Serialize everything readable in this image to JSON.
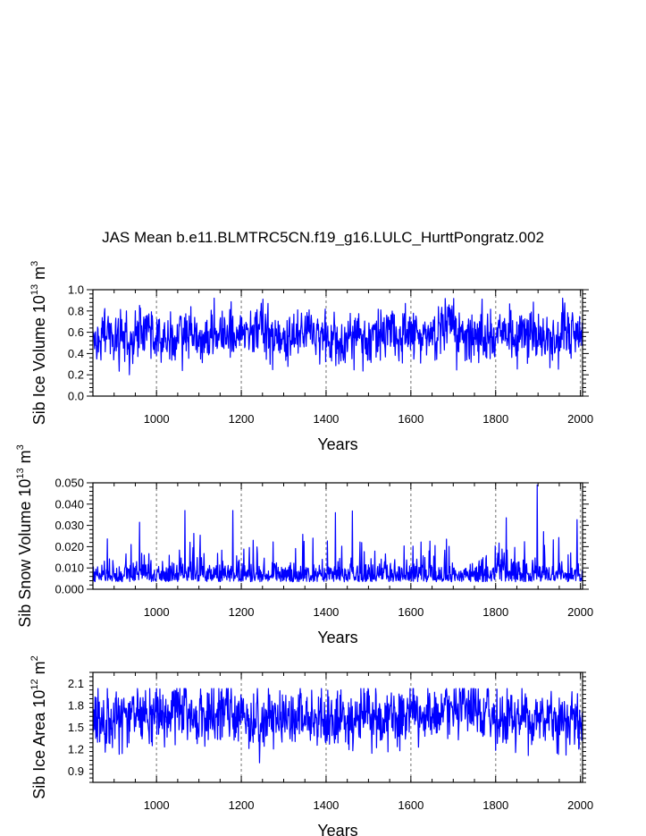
{
  "page": {
    "title": "JAS Mean b.e11.BLMTRC5CN.f19_g16.LULC_HurttPongratz.002"
  },
  "chart_data": [
    {
      "type": "line",
      "id": "ice-volume",
      "xlabel": "Years",
      "ylabel": "Sib Ice Volume 10",
      "ylabel_exp": "13",
      "ylabel_unit": "m",
      "ylabel_unit_exp": "3",
      "xlim": [
        850,
        2005
      ],
      "ylim": [
        0.0,
        1.0
      ],
      "xticks": [
        1000,
        1200,
        1400,
        1600,
        1800,
        2000
      ],
      "yticks": [
        0.0,
        0.2,
        0.4,
        0.6,
        0.8,
        1.0
      ],
      "ytick_labels": [
        "0.0",
        "0.2",
        "0.4",
        "0.6",
        "0.8",
        "1.0"
      ],
      "vlines": [
        1000,
        1200,
        1400,
        1600,
        1800,
        2000
      ],
      "line_color": "#0000ff",
      "series": [
        {
          "name": "Sib Ice Volume",
          "x_start": 850,
          "x_end": 2005,
          "mean": 0.57,
          "amplitude": 0.13,
          "range": [
            0.19,
            0.92
          ]
        }
      ]
    },
    {
      "type": "line",
      "id": "snow-volume",
      "xlabel": "Years",
      "ylabel": "Sib Snow Volume 10",
      "ylabel_exp": "13",
      "ylabel_unit": "m",
      "ylabel_unit_exp": "3",
      "xlim": [
        850,
        2005
      ],
      "ylim": [
        0.0,
        0.05
      ],
      "xticks": [
        1000,
        1200,
        1400,
        1600,
        1800,
        2000
      ],
      "yticks": [
        0.0,
        0.01,
        0.02,
        0.03,
        0.04,
        0.05
      ],
      "ytick_labels": [
        "0.000",
        "0.010",
        "0.020",
        "0.030",
        "0.040",
        "0.050"
      ],
      "vlines": [
        1000,
        1200,
        1400,
        1600,
        1800,
        2000
      ],
      "line_color": "#0000ff",
      "series": [
        {
          "name": "Sib Snow Volume",
          "x_start": 850,
          "x_end": 2005,
          "mean": 0.006,
          "amplitude": 0.008,
          "range": [
            0.0,
            0.049
          ]
        }
      ]
    },
    {
      "type": "line",
      "id": "ice-area",
      "xlabel": "Years",
      "ylabel": "Sib Ice Area 10",
      "ylabel_exp": "12",
      "ylabel_unit": "m",
      "ylabel_unit_exp": "2",
      "xlim": [
        850,
        2005
      ],
      "ylim": [
        0.75,
        2.25
      ],
      "xticks": [
        1000,
        1200,
        1400,
        1600,
        1800,
        2000
      ],
      "yticks": [
        0.9,
        1.2,
        1.5,
        1.8,
        2.1
      ],
      "ytick_labels": [
        "0.9",
        "1.2",
        "1.5",
        "1.8",
        "2.1"
      ],
      "vlines": [
        1000,
        1200,
        1400,
        1600,
        1800,
        2000
      ],
      "line_color": "#0000ff",
      "series": [
        {
          "name": "Sib Ice Area",
          "x_start": 850,
          "x_end": 2005,
          "mean": 1.65,
          "amplitude": 0.22,
          "range": [
            0.87,
            2.03
          ]
        }
      ]
    }
  ]
}
